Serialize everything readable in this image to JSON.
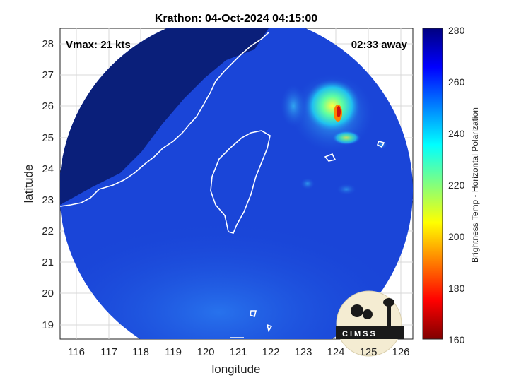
{
  "title": "Krathon: 04-Oct-2024 04:15:00",
  "annotations": {
    "vmax": "Vmax: 21 kts",
    "away": "02:33 away"
  },
  "axes": {
    "xlabel": "longitude",
    "ylabel": "latitude",
    "x_ticks": [
      "116",
      "117",
      "118",
      "119",
      "120",
      "121",
      "122",
      "123",
      "124",
      "125",
      "126"
    ],
    "y_ticks": [
      "28",
      "27",
      "26",
      "25",
      "24",
      "23",
      "22",
      "21",
      "20",
      "19"
    ],
    "xlim": [
      115.5,
      126.3
    ],
    "ylim": [
      18.5,
      28.5
    ]
  },
  "colorbar": {
    "label": "Brightness Temp - Horizontal Polarization",
    "ticks": [
      "280",
      "260",
      "240",
      "220",
      "200",
      "180",
      "160"
    ],
    "range": [
      160,
      280
    ],
    "colormap": "jet"
  },
  "logo": {
    "text": "CIMSS"
  },
  "colors": {
    "background_deep": "#0a1f7a",
    "ocean": "#1a45d8",
    "coast": "#ffffff",
    "hotspot": "#d01010"
  }
}
